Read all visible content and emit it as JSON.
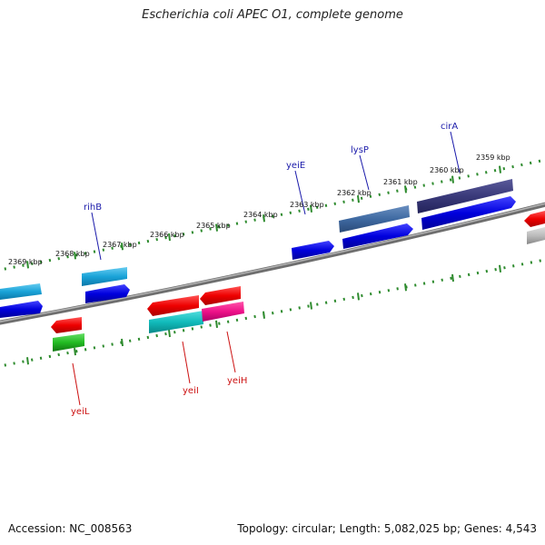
{
  "title": "Escherichia coli APEC O1, complete genome",
  "footer": {
    "accession_label": "Accession: NC_008563",
    "summary": "Topology: circular; Length: 5,082,025 bp; Genes: 4,543"
  },
  "colors": {
    "backbone": "#808080",
    "ticks": "#2e8b2e",
    "forward_label": "#1a1aaa",
    "reverse_label": "#cc1111"
  },
  "ticks": [
    {
      "kbp": 2359,
      "label": "2359 kbp"
    },
    {
      "kbp": 2360,
      "label": "2360 kbp"
    },
    {
      "kbp": 2361,
      "label": "2361 kbp"
    },
    {
      "kbp": 2362,
      "label": "2362 kbp"
    },
    {
      "kbp": 2363,
      "label": "2363 kbp"
    },
    {
      "kbp": 2364,
      "label": "2364 kbp"
    },
    {
      "kbp": 2365,
      "label": "2365 kbp"
    },
    {
      "kbp": 2366,
      "label": "2366 kbp"
    },
    {
      "kbp": 2367,
      "label": "2367 kbp"
    },
    {
      "kbp": 2368,
      "label": "2368 kbp"
    },
    {
      "kbp": 2369,
      "label": "2369 kbp"
    }
  ],
  "gene_labels": [
    {
      "name": "rihB",
      "strand": "forward"
    },
    {
      "name": "yeiE",
      "strand": "forward"
    },
    {
      "name": "lysP",
      "strand": "forward"
    },
    {
      "name": "cirA",
      "strand": "forward"
    },
    {
      "name": "yeiL",
      "strand": "reverse"
    },
    {
      "name": "yeiI",
      "strand": "reverse"
    },
    {
      "name": "yeiH",
      "strand": "reverse"
    }
  ]
}
